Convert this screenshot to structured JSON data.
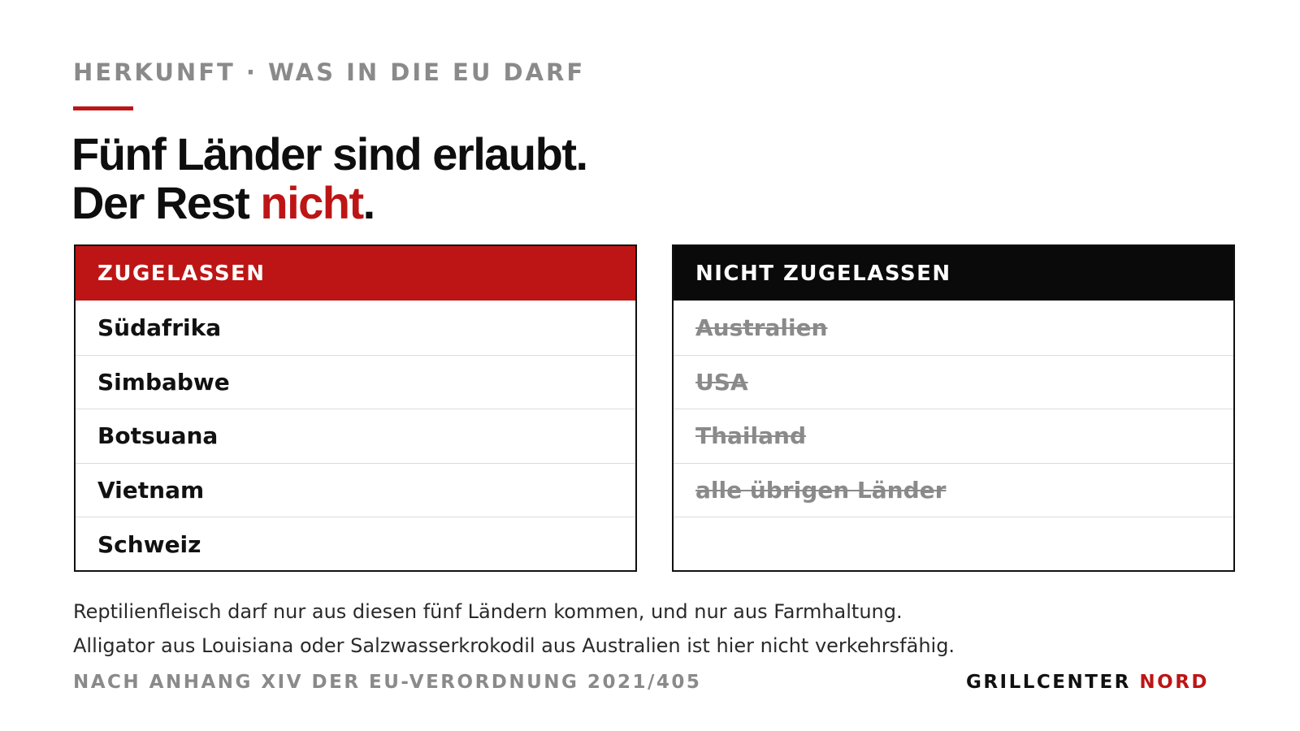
{
  "kicker": "HERKUNFT · WAS IN DIE EU DARF",
  "headline": {
    "line1": "Fünf Länder sind erlaubt.",
    "line2_prefix": "Der Rest ",
    "line2_accent": "nicht",
    "line2_suffix": "."
  },
  "allowed": {
    "title": "ZUGELASSEN",
    "items": [
      "Südafrika",
      "Simbabwe",
      "Botsuana",
      "Vietnam",
      "Schweiz"
    ]
  },
  "not_allowed": {
    "title": "NICHT ZUGELASSEN",
    "items": [
      "Australien",
      "USA",
      "Thailand",
      "alle übrigen Länder"
    ]
  },
  "body": {
    "line1": "Reptilienfleisch darf nur aus diesen fünf Ländern kommen, und nur aus Farmhaltung.",
    "line2": "Alligator aus Louisiana oder Salzwasserkrokodil aus Australien ist hier nicht verkehrsfähig."
  },
  "footnote": "NACH ANHANG XIV DER EU-VERORDNUNG 2021/405",
  "brand": {
    "part1": "GRILLCENTER ",
    "part2": "NORD"
  },
  "colors": {
    "accent": "#bd1515",
    "dark": "#0a0a0a",
    "muted": "#8a8a8a"
  }
}
